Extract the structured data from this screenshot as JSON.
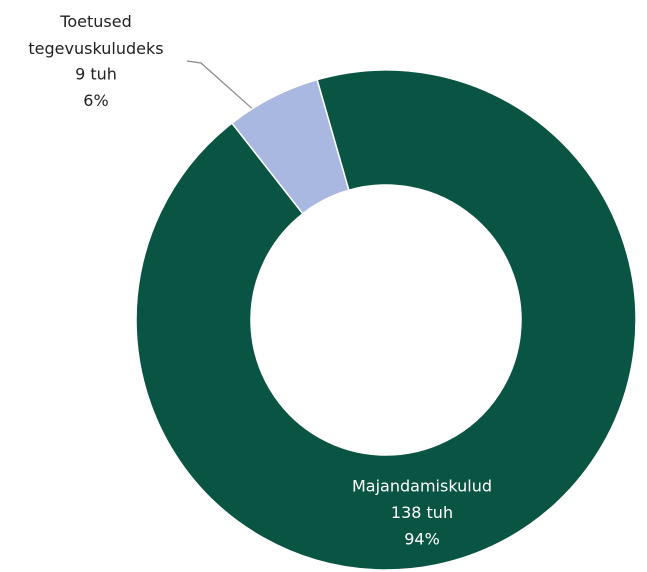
{
  "chart_data": {
    "type": "donut",
    "categories": [
      "Majandamiskulud",
      "Toetused tegevuskuludeks"
    ],
    "values": [
      138,
      9
    ],
    "value_labels": [
      "138 tuh",
      "9 tuh"
    ],
    "percent": [
      94,
      6
    ],
    "percent_labels": [
      "94%",
      "6%"
    ],
    "colors": [
      "#0a5444",
      "#a9b8e0"
    ]
  }
}
